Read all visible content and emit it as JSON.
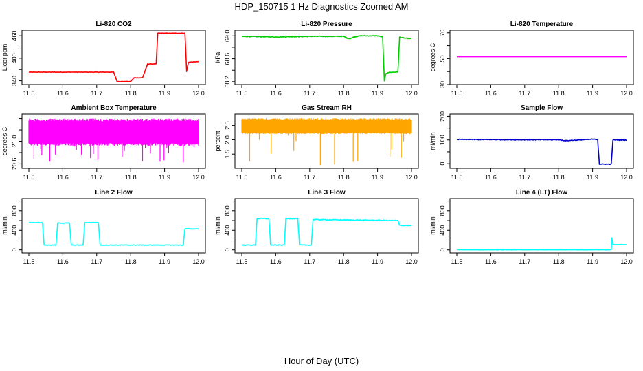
{
  "page": {
    "title": "HDP_150715  1 Hz Diagnostics Zoomed AM",
    "xlabel": "Hour of Day (UTC)"
  },
  "chart_data": [
    {
      "type": "line",
      "title": "Li-820 CO2",
      "xlabel": "",
      "ylabel": "Licor ppm",
      "xlim": [
        11.5,
        12.0
      ],
      "ylim": [
        330,
        475
      ],
      "xticks": [
        "11.5",
        "11.6",
        "11.7",
        "11.8",
        "11.9",
        "12.0"
      ],
      "yticks": [
        "340",
        "400",
        "460"
      ],
      "yticks_values": [
        340,
        400,
        460
      ],
      "yticks_minor": [
        370,
        430
      ],
      "color": "#ff0000",
      "style": "step",
      "noise": 0.5,
      "series": [
        {
          "x": [
            11.5,
            11.75,
            11.76,
            11.8,
            11.81,
            11.835,
            11.85,
            11.875,
            11.88,
            11.96,
            11.965,
            11.97,
            11.972,
            12.0
          ],
          "y": [
            363,
            363,
            338,
            338,
            348,
            348,
            385,
            385,
            467,
            467,
            365,
            388,
            390,
            391
          ]
        }
      ]
    },
    {
      "type": "line",
      "title": "Li-820 Pressure",
      "xlabel": "",
      "ylabel": "kPa",
      "xlim": [
        11.5,
        12.0
      ],
      "ylim": [
        68.15,
        69.1
      ],
      "xticks": [
        "11.5",
        "11.6",
        "11.7",
        "11.8",
        "11.9",
        "12.0"
      ],
      "yticks": [
        "68.2",
        "68.6",
        "69.0"
      ],
      "yticks_values": [
        68.2,
        68.6,
        69.0
      ],
      "yticks_minor": [
        68.4,
        68.8
      ],
      "color": "#00cc00",
      "style": "line",
      "noise": 0.006,
      "series": [
        {
          "x": [
            11.5,
            11.6,
            11.7,
            11.8,
            11.81,
            11.82,
            11.83,
            11.85,
            11.9,
            11.915,
            11.92,
            11.925,
            11.93,
            11.96,
            11.965,
            11.97,
            11.98,
            12.0
          ],
          "y": [
            68.99,
            68.98,
            68.99,
            68.99,
            68.96,
            68.95,
            68.98,
            69.0,
            69.0,
            68.98,
            68.22,
            68.34,
            68.36,
            68.37,
            68.98,
            68.97,
            68.96,
            68.95
          ]
        }
      ]
    },
    {
      "type": "line",
      "title": "Li-820 Temperature",
      "xlabel": "",
      "ylabel": "degrees C",
      "xlim": [
        11.5,
        12.0
      ],
      "ylim": [
        30,
        72
      ],
      "xticks": [
        "11.5",
        "11.6",
        "11.7",
        "11.8",
        "11.9",
        "12.0"
      ],
      "yticks": [
        "30",
        "50",
        "70"
      ],
      "yticks_values": [
        30,
        50,
        70
      ],
      "yticks_minor": [
        40,
        60
      ],
      "color": "#ff00ff",
      "style": "line",
      "noise": 0,
      "series": [
        {
          "x": [
            11.5,
            12.0
          ],
          "y": [
            51.5,
            51.5
          ]
        }
      ]
    },
    {
      "type": "line",
      "title": "Ambient Box Temperature",
      "xlabel": "",
      "ylabel": "degrees C",
      "xlim": [
        11.5,
        12.0
      ],
      "ylim": [
        20.52,
        21.48
      ],
      "xticks": [
        "11.5",
        "11.6",
        "11.7",
        "11.8",
        "11.9",
        "12.0"
      ],
      "yticks": [
        "20.6",
        "21.0"
      ],
      "yticks_values": [
        20.6,
        21.0
      ],
      "yticks_minor": [
        20.8,
        21.2,
        21.4
      ],
      "color": "#ff00ff",
      "style": "dense",
      "band": [
        20.92,
        21.4
      ],
      "spikes_low": 20.62,
      "series": [
        {
          "x": [
            11.5,
            12.0
          ],
          "y": [
            21.15,
            21.15
          ]
        }
      ]
    },
    {
      "type": "line",
      "title": "Gas Stream RH",
      "xlabel": "",
      "ylabel": "percent",
      "xlim": [
        11.5,
        12.0
      ],
      "ylim": [
        1.0,
        2.9
      ],
      "xticks": [
        "11.5",
        "11.6",
        "11.7",
        "11.8",
        "11.9",
        "12.0"
      ],
      "yticks": [
        "1.5",
        "2.0",
        "2.5"
      ],
      "yticks_values": [
        1.5,
        2.0,
        2.5
      ],
      "yticks_minor": [],
      "color": "#ffa500",
      "style": "dense",
      "band": [
        2.2,
        2.75
      ],
      "spikes_low": 1.1,
      "series": [
        {
          "x": [
            11.5,
            12.0
          ],
          "y": [
            2.45,
            2.45
          ]
        }
      ]
    },
    {
      "type": "line",
      "title": "Sample Flow",
      "xlabel": "",
      "ylabel": "ml/min",
      "xlim": [
        11.5,
        12.0
      ],
      "ylim": [
        -20,
        210
      ],
      "xticks": [
        "11.5",
        "11.6",
        "11.7",
        "11.8",
        "11.9",
        "12.0"
      ],
      "yticks": [
        "0",
        "100",
        "200"
      ],
      "yticks_values": [
        0,
        100,
        200
      ],
      "yticks_minor": [
        50,
        150
      ],
      "color": "#0000cd",
      "style": "line",
      "noise": 1.5,
      "series": [
        {
          "x": [
            11.5,
            11.7,
            11.8,
            11.82,
            11.9,
            11.915,
            11.92,
            11.955,
            11.96,
            11.97,
            12.0
          ],
          "y": [
            102,
            101,
            101,
            97,
            103,
            102,
            -2,
            -2,
            100,
            100,
            100
          ]
        }
      ]
    },
    {
      "type": "line",
      "title": "Line 2 Flow",
      "xlabel": "",
      "ylabel": "ml/min",
      "xlim": [
        11.5,
        12.0
      ],
      "ylim": [
        -60,
        1050
      ],
      "xticks": [
        "11.5",
        "11.6",
        "11.7",
        "11.8",
        "11.9",
        "12.0"
      ],
      "yticks": [
        "0",
        "400",
        "800"
      ],
      "yticks_values": [
        0,
        400,
        800
      ],
      "yticks_minor": [
        200,
        600,
        1000
      ],
      "color": "#00ffff",
      "style": "step",
      "noise": 6,
      "series": [
        {
          "x": [
            11.5,
            11.54,
            11.545,
            11.58,
            11.585,
            11.62,
            11.625,
            11.66,
            11.665,
            11.705,
            11.71,
            11.955,
            11.96,
            12.0
          ],
          "y": [
            560,
            560,
            100,
            100,
            550,
            550,
            100,
            100,
            560,
            560,
            100,
            100,
            430,
            430
          ]
        }
      ]
    },
    {
      "type": "line",
      "title": "Line 3 Flow",
      "xlabel": "",
      "ylabel": "ml/min",
      "xlim": [
        11.5,
        12.0
      ],
      "ylim": [
        -60,
        1050
      ],
      "xticks": [
        "11.5",
        "11.6",
        "11.7",
        "11.8",
        "11.9",
        "12.0"
      ],
      "yticks": [
        "0",
        "400",
        "800"
      ],
      "yticks_values": [
        0,
        400,
        800
      ],
      "yticks_minor": [
        200,
        600,
        1000
      ],
      "color": "#00ffff",
      "style": "step",
      "noise": 8,
      "series": [
        {
          "x": [
            11.5,
            11.54,
            11.545,
            11.58,
            11.585,
            11.625,
            11.63,
            11.665,
            11.67,
            11.705,
            11.71,
            11.96,
            11.965,
            12.0
          ],
          "y": [
            100,
            100,
            640,
            640,
            100,
            100,
            640,
            640,
            100,
            100,
            620,
            600,
            500,
            500
          ]
        }
      ]
    },
    {
      "type": "line",
      "title": "Line 4 (LT) Flow",
      "xlabel": "",
      "ylabel": "ml/min",
      "xlim": [
        11.5,
        12.0
      ],
      "ylim": [
        -60,
        1050
      ],
      "xticks": [
        "11.5",
        "11.6",
        "11.7",
        "11.8",
        "11.9",
        "12.0"
      ],
      "yticks": [
        "0",
        "400",
        "800"
      ],
      "yticks_values": [
        0,
        400,
        800
      ],
      "yticks_minor": [
        200,
        600,
        1000
      ],
      "color": "#00ffff",
      "style": "step",
      "noise": 3,
      "series": [
        {
          "x": [
            11.5,
            11.955,
            11.956,
            11.96,
            11.962,
            12.0
          ],
          "y": [
            2,
            2,
            280,
            110,
            110,
            110
          ]
        }
      ]
    }
  ]
}
